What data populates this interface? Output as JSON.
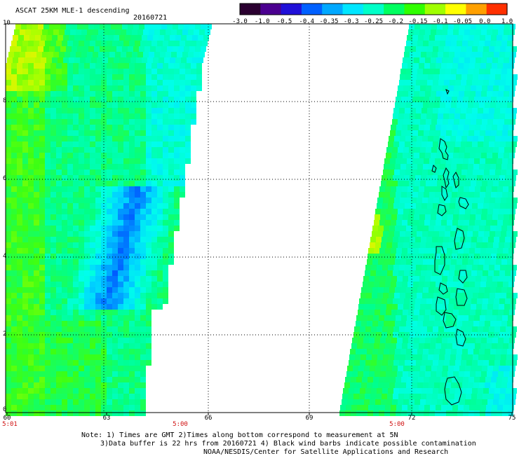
{
  "header": {
    "title": "ASCAT 25KM MLE-1 descending",
    "date": "20160721"
  },
  "colorbar": {
    "labels": [
      "-3.0",
      "-1.0",
      "-0.5",
      "-0.4",
      "-0.35",
      "-0.3",
      "-0.25",
      "-0.2",
      "-0.15",
      "-0.1",
      "-0.05",
      "0.0",
      "1.0"
    ],
    "colors": [
      "#2a0030",
      "#4b0090",
      "#2010d8",
      "#0060ff",
      "#00a8ff",
      "#00e6ff",
      "#00ffc8",
      "#00ff60",
      "#30ff00",
      "#a0ff00",
      "#ffff00",
      "#ffa000",
      "#ff3000"
    ]
  },
  "axes": {
    "y_labels": [
      "10",
      "8",
      "6",
      "4",
      "2",
      "0"
    ],
    "x_labels": [
      "60",
      "63",
      "66",
      "69",
      "72",
      "75"
    ],
    "time_labels": [
      "5:01",
      "5:00",
      "5:00"
    ]
  },
  "footer": {
    "line1": "Note: 1) Times are GMT 2)Times along bottom correspond to measurement at 5N",
    "line2": "3)Data buffer is 22 hrs from 20160721 4) Black wind barbs indicate possible contamination",
    "line3": "NOAA/NESDIS/Center for Satellite Applications and Research"
  }
}
